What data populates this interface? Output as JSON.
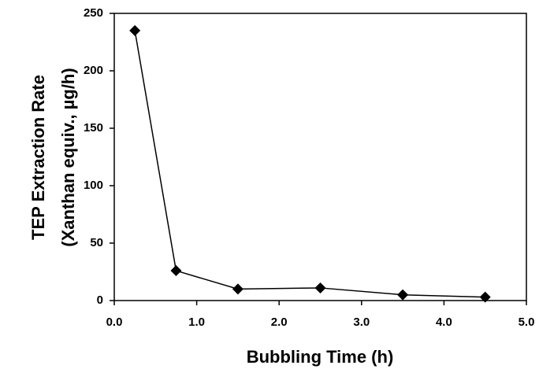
{
  "chart_data": {
    "type": "line",
    "xlabel": "Bubbling Time  (h)",
    "ylabel": [
      "TEP Extraction Rate",
      "(Xanthan equiv., µg/h)"
    ],
    "x": [
      0.25,
      0.75,
      1.5,
      2.5,
      3.5,
      4.5
    ],
    "series": [
      {
        "color": "#000000",
        "values": [
          235,
          26,
          10,
          11,
          5,
          3
        ]
      }
    ],
    "xlim": [
      0,
      5
    ],
    "xticks": [
      {
        "value": 0,
        "label": "0.0"
      },
      {
        "value": 1,
        "label": "1.0"
      },
      {
        "value": 2,
        "label": "2.0"
      },
      {
        "value": 3,
        "label": "3.0"
      },
      {
        "value": 4,
        "label": "4.0"
      },
      {
        "value": 5,
        "label": "5.0"
      }
    ],
    "ylim": [
      0,
      250
    ],
    "yticks": [
      0,
      50,
      100,
      150,
      200,
      250
    ],
    "grid": false
  }
}
